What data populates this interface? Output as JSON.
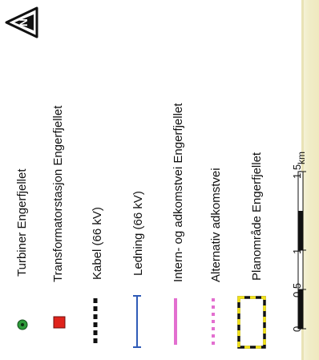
{
  "legend": {
    "items": [
      {
        "label": "Turbiner Engerfjellet",
        "symbol": "green-dot",
        "color": "#2e9b3a"
      },
      {
        "label": "Transformatorstasjon Engerfjellet",
        "symbol": "red-square",
        "color": "#e0231c"
      },
      {
        "label": "Kabel (66 kV)",
        "symbol": "black-dashed-line",
        "color": "#111111"
      },
      {
        "label": "Ledning (66 kV)",
        "symbol": "blue-line",
        "color": "#2f5bb7"
      },
      {
        "label": "Intern- og adkomstvei Engerfjellet",
        "symbol": "pink-line",
        "color": "#e36fd0"
      },
      {
        "label": "Alternativ adkomstvei",
        "symbol": "pink-dotted-line",
        "color": "#e36fd0"
      },
      {
        "label": "Planområde Engerfjellet",
        "symbol": "yellow-black-dashed-box",
        "color": "#f2e21a"
      }
    ]
  },
  "scale": {
    "ticks": [
      "0",
      "0,5",
      "1",
      "1,5"
    ],
    "unit": "km"
  },
  "north_arrow": {
    "icon": "north-arrow-icon",
    "letter": "N"
  }
}
